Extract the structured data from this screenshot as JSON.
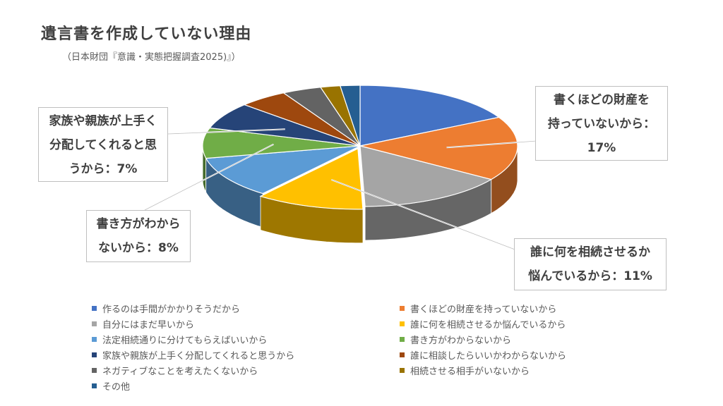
{
  "title": "遺言書を作成していない理由",
  "subtitle": "（日本財団『意識・実態把握調査2025)』）",
  "chart_data": {
    "type": "pie",
    "title": "遺言書を作成していない理由",
    "subtitle": "（日本財団『意識・実態把握調査2025)』）",
    "unit": "%",
    "slices": [
      {
        "label": "作るのは手間がかかりそうだから",
        "value": 17,
        "color": "#4472C4"
      },
      {
        "label": "書くほどの財産を持っていないから",
        "value": 17,
        "color": "#ED7D31"
      },
      {
        "label": "自分にはまだ早いから",
        "value": 15,
        "color": "#A5A5A5"
      },
      {
        "label": "誰に何を相続させるか悩んでいるから",
        "value": 11,
        "color": "#FFC000"
      },
      {
        "label": "法定相続通りに分けてもらえばいいから",
        "value": 11,
        "color": "#5B9BD5"
      },
      {
        "label": "書き方がわからないから",
        "value": 8,
        "color": "#70AD47"
      },
      {
        "label": "家族や親族が上手く分配してくれると思うから",
        "value": 7,
        "color": "#264478"
      },
      {
        "label": "誰に相談したらいいかわからないから",
        "value": 5,
        "color": "#9E480E"
      },
      {
        "label": "ネガティブなことを考えたくないから",
        "value": 4,
        "color": "#636363"
      },
      {
        "label": "相続させる相手がいないから",
        "value": 2,
        "color": "#997300"
      },
      {
        "label": "その他",
        "value": 2,
        "color": "#255E91"
      }
    ],
    "data_labels": [
      {
        "slice": 1,
        "lines": [
          "書くほどの財産を",
          "持っていないから：",
          "17%"
        ]
      },
      {
        "slice": 3,
        "lines": [
          "誰に何を相続させるか",
          "悩んでいるから：11%"
        ]
      },
      {
        "slice": 5,
        "lines": [
          "書き方がわから",
          "ないから：8%"
        ]
      },
      {
        "slice": 6,
        "lines": [
          "家族や親族が上手く",
          "分配してくれると思",
          "うから：7%"
        ]
      }
    ],
    "legend_position": "bottom"
  }
}
